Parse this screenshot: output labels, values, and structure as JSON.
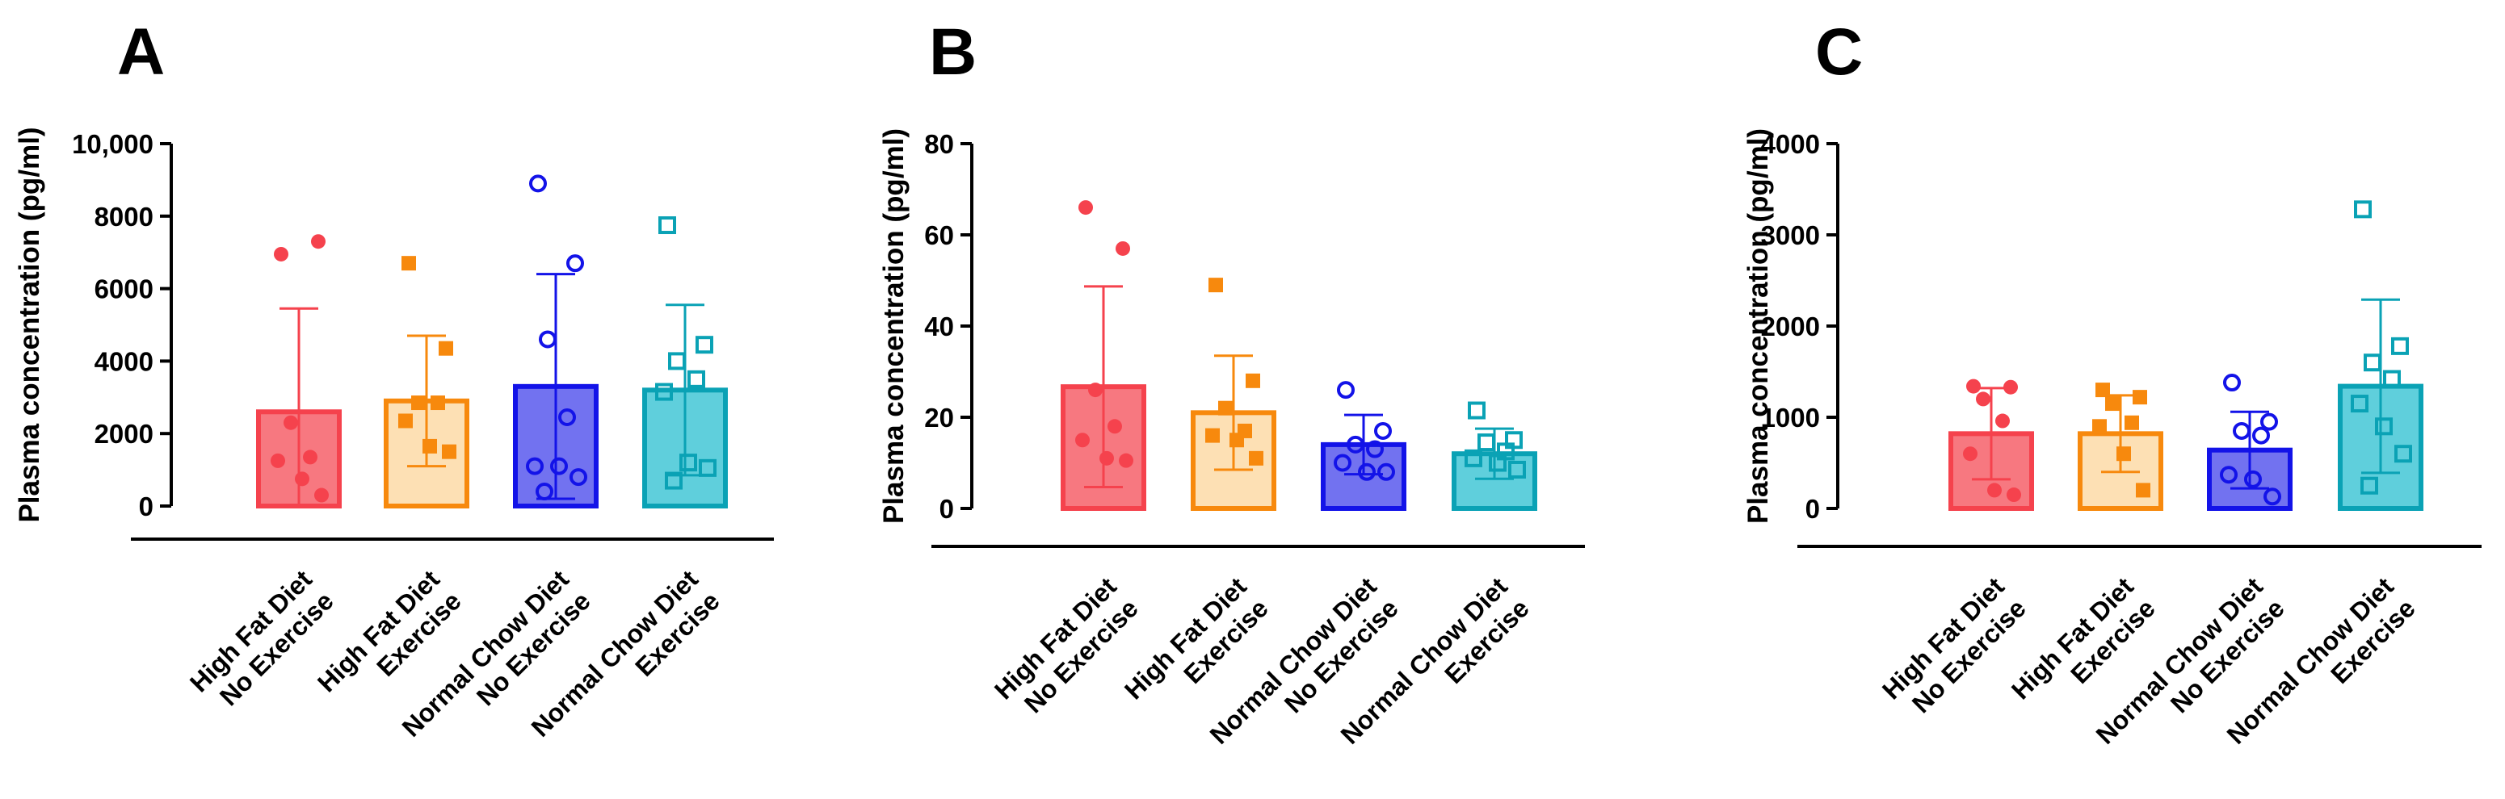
{
  "chart_data": [
    {
      "panel": "A",
      "type": "bar",
      "title": "",
      "xlabel": "",
      "ylabel": "Plasma concentration (pg/ml)",
      "ylim": [
        0,
        10000
      ],
      "yticks": [
        0,
        2000,
        4000,
        6000,
        8000,
        10000
      ],
      "ytick_labels": [
        "0",
        "2000",
        "4000",
        "6000",
        "8000",
        "10,000"
      ],
      "categories": [
        "High Fat Diet\nNo Exercise",
        "High Fat Diet\nExercise",
        "Normal Chow Diet\nNo Exercise",
        "Normal Chow Diet\nExercise"
      ],
      "means": [
        2600,
        2900,
        3300,
        3200
      ],
      "sd": [
        2850,
        1800,
        3100,
        2350
      ],
      "points": [
        [
          6950,
          7300,
          2300,
          1350,
          1250,
          750,
          300
        ],
        [
          6700,
          4350,
          2850,
          2850,
          2350,
          1650,
          1500
        ],
        [
          8900,
          6700,
          4600,
          2450,
          1100,
          1100,
          800,
          400
        ],
        [
          7750,
          4450,
          4000,
          3500,
          3150,
          1200,
          1050,
          700
        ]
      ]
    },
    {
      "panel": "B",
      "type": "bar",
      "title": "",
      "xlabel": "",
      "ylabel": "Plasma concentration (pg/ml)",
      "ylim": [
        0,
        80
      ],
      "yticks": [
        0,
        20,
        40,
        60,
        80
      ],
      "ytick_labels": [
        "0",
        "20",
        "40",
        "60",
        "80"
      ],
      "categories": [
        "High Fat Diet\nNo Exercise",
        "High Fat Diet\nExercise",
        "Normal Chow Diet\nNo Exercise",
        "Normal Chow Diet\nExercise"
      ],
      "means": [
        26.7,
        21,
        14,
        12
      ],
      "sd": [
        22,
        12.5,
        6.5,
        5.5
      ],
      "points": [
        [
          66,
          57,
          26,
          18,
          15,
          11,
          10.5
        ],
        [
          49,
          28,
          22,
          17,
          16,
          15,
          11
        ],
        [
          26,
          17,
          14,
          13,
          10,
          8,
          8
        ],
        [
          21.5,
          15,
          14.5,
          12.5,
          11,
          10,
          8.5
        ]
      ]
    },
    {
      "panel": "C",
      "type": "bar",
      "title": "",
      "xlabel": "",
      "ylabel": "Plasma concentration (pg/ml)",
      "ylim": [
        0,
        4000
      ],
      "yticks": [
        0,
        1000,
        2000,
        3000,
        4000
      ],
      "ytick_labels": [
        "0",
        "1000",
        "2000",
        "3000",
        "4000"
      ],
      "categories": [
        "High Fat Diet\nNo Exercise",
        "High Fat Diet\nExercise",
        "Normal Chow Diet\nNo Exercise",
        "Normal Chow Diet\nExercise"
      ],
      "means": [
        820,
        820,
        640,
        1340
      ],
      "sd": [
        500,
        420,
        420,
        950
      ],
      "points": [
        [
          1340,
          1330,
          1200,
          960,
          600,
          200,
          150
        ],
        [
          1300,
          1220,
          1150,
          940,
          900,
          600,
          200
        ],
        [
          1380,
          950,
          850,
          800,
          370,
          320,
          130
        ],
        [
          3280,
          1780,
          1600,
          1420,
          1150,
          900,
          600,
          250
        ]
      ]
    }
  ],
  "colors": {
    "groups": [
      {
        "stroke": "#f5424d",
        "fill": "#f77880"
      },
      {
        "stroke": "#f7890d",
        "fill": "#fde0b4"
      },
      {
        "stroke": "#1313e8",
        "fill": "#7272f0"
      },
      {
        "stroke": "#0aa2b5",
        "fill": "#5fcfdc"
      }
    ],
    "axis": "#000000"
  },
  "markers": [
    "filled-circle",
    "filled-square",
    "open-circle",
    "open-square"
  ]
}
